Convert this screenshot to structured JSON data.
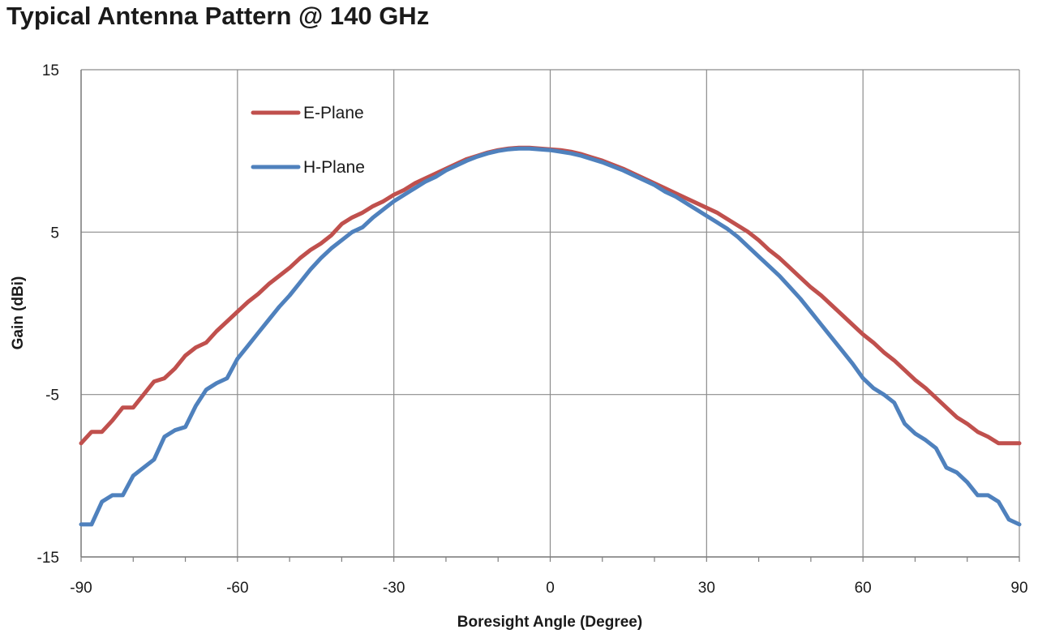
{
  "chart_data": {
    "type": "line",
    "title": "Typical Antenna Pattern @ 140 GHz",
    "xlabel": "Boresight Angle (Degree)",
    "ylabel": "Gain (dBi)",
    "xlim": [
      -90,
      90
    ],
    "ylim": [
      -15,
      15
    ],
    "xticks": [
      -90,
      -60,
      -30,
      0,
      30,
      60,
      90
    ],
    "yticks": [
      -15,
      -5,
      5,
      15
    ],
    "grid": true,
    "legend_position": "top-left",
    "x": [
      -90,
      -88,
      -86,
      -84,
      -82,
      -80,
      -78,
      -76,
      -74,
      -72,
      -70,
      -68,
      -66,
      -64,
      -62,
      -60,
      -58,
      -56,
      -54,
      -52,
      -50,
      -48,
      -46,
      -44,
      -42,
      -40,
      -38,
      -36,
      -34,
      -32,
      -30,
      -28,
      -26,
      -24,
      -22,
      -20,
      -18,
      -16,
      -14,
      -12,
      -10,
      -8,
      -6,
      -4,
      -2,
      0,
      2,
      4,
      6,
      8,
      10,
      12,
      14,
      16,
      18,
      20,
      22,
      24,
      26,
      28,
      30,
      32,
      34,
      36,
      38,
      40,
      42,
      44,
      46,
      48,
      50,
      52,
      54,
      56,
      58,
      60,
      62,
      64,
      66,
      68,
      70,
      72,
      74,
      76,
      78,
      80,
      82,
      84,
      86,
      88,
      90
    ],
    "series": [
      {
        "name": "E-Plane",
        "color": "#c0504d",
        "values": [
          -8.0,
          -7.3,
          -7.3,
          -6.6,
          -5.8,
          -5.8,
          -5.0,
          -4.2,
          -4.0,
          -3.4,
          -2.6,
          -2.1,
          -1.8,
          -1.1,
          -0.5,
          0.1,
          0.7,
          1.2,
          1.8,
          2.3,
          2.8,
          3.4,
          3.9,
          4.3,
          4.8,
          5.5,
          5.9,
          6.2,
          6.6,
          6.9,
          7.3,
          7.6,
          8.0,
          8.3,
          8.6,
          8.9,
          9.2,
          9.5,
          9.7,
          9.9,
          10.05,
          10.15,
          10.2,
          10.2,
          10.15,
          10.1,
          10.05,
          9.95,
          9.8,
          9.6,
          9.4,
          9.15,
          8.9,
          8.6,
          8.3,
          8.0,
          7.7,
          7.4,
          7.1,
          6.8,
          6.5,
          6.2,
          5.8,
          5.4,
          5.0,
          4.5,
          3.9,
          3.4,
          2.8,
          2.2,
          1.6,
          1.1,
          0.5,
          -0.1,
          -0.7,
          -1.3,
          -1.8,
          -2.4,
          -2.9,
          -3.5,
          -4.1,
          -4.6,
          -5.2,
          -5.8,
          -6.4,
          -6.8,
          -7.3,
          -7.6,
          -8.0,
          -8.0,
          -8.0
        ]
      },
      {
        "name": "H-Plane",
        "color": "#4f81bd",
        "values": [
          -13.0,
          -13.0,
          -11.6,
          -11.2,
          -11.2,
          -10.0,
          -9.5,
          -9.0,
          -7.6,
          -7.2,
          -7.0,
          -5.7,
          -4.7,
          -4.3,
          -4.0,
          -2.8,
          -2.0,
          -1.2,
          -0.4,
          0.4,
          1.1,
          1.9,
          2.7,
          3.4,
          4.0,
          4.5,
          5.0,
          5.3,
          5.9,
          6.4,
          6.9,
          7.3,
          7.7,
          8.1,
          8.4,
          8.8,
          9.1,
          9.4,
          9.65,
          9.85,
          10.0,
          10.1,
          10.15,
          10.15,
          10.1,
          10.05,
          9.95,
          9.85,
          9.7,
          9.5,
          9.3,
          9.05,
          8.8,
          8.5,
          8.2,
          7.9,
          7.5,
          7.2,
          6.8,
          6.4,
          6.0,
          5.6,
          5.2,
          4.7,
          4.1,
          3.5,
          2.9,
          2.3,
          1.6,
          0.9,
          0.1,
          -0.7,
          -1.5,
          -2.3,
          -3.1,
          -4.0,
          -4.6,
          -5.0,
          -5.5,
          -6.8,
          -7.4,
          -7.8,
          -8.3,
          -9.5,
          -9.8,
          -10.4,
          -11.2,
          -11.2,
          -11.6,
          -12.7,
          -13.0
        ]
      }
    ]
  }
}
